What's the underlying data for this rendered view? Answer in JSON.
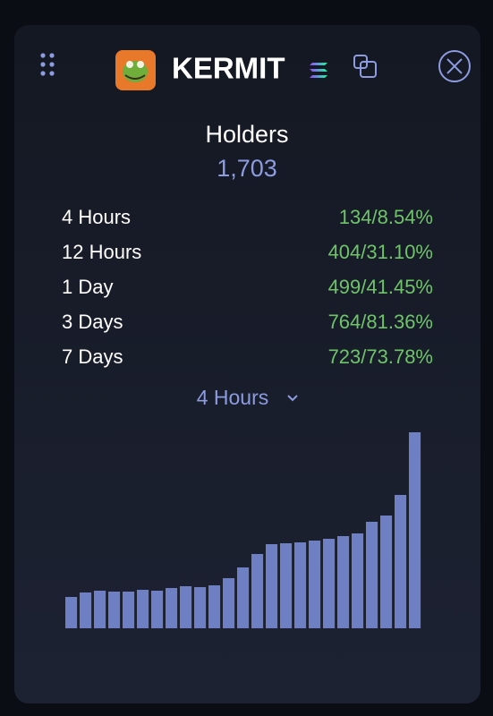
{
  "header": {
    "title": "KERMIT"
  },
  "holders": {
    "label": "Holders",
    "value": "1,703"
  },
  "stats": [
    {
      "label": "4 Hours",
      "value": "134/8.54%"
    },
    {
      "label": "12 Hours",
      "value": "404/31.10%"
    },
    {
      "label": "1 Day",
      "value": "499/41.45%"
    },
    {
      "label": "3 Days",
      "value": "764/81.36%"
    },
    {
      "label": "7 Days",
      "value": "723/73.78%"
    }
  ],
  "dropdown": {
    "label": "4 Hours"
  },
  "chart_data": {
    "type": "bar",
    "color": "#6f7fc4",
    "values": [
      35,
      40,
      42,
      41,
      41,
      43,
      42,
      45,
      47,
      46,
      48,
      56,
      68,
      83,
      94,
      95,
      96,
      98,
      100,
      103,
      106,
      119,
      126,
      149,
      219
    ]
  }
}
